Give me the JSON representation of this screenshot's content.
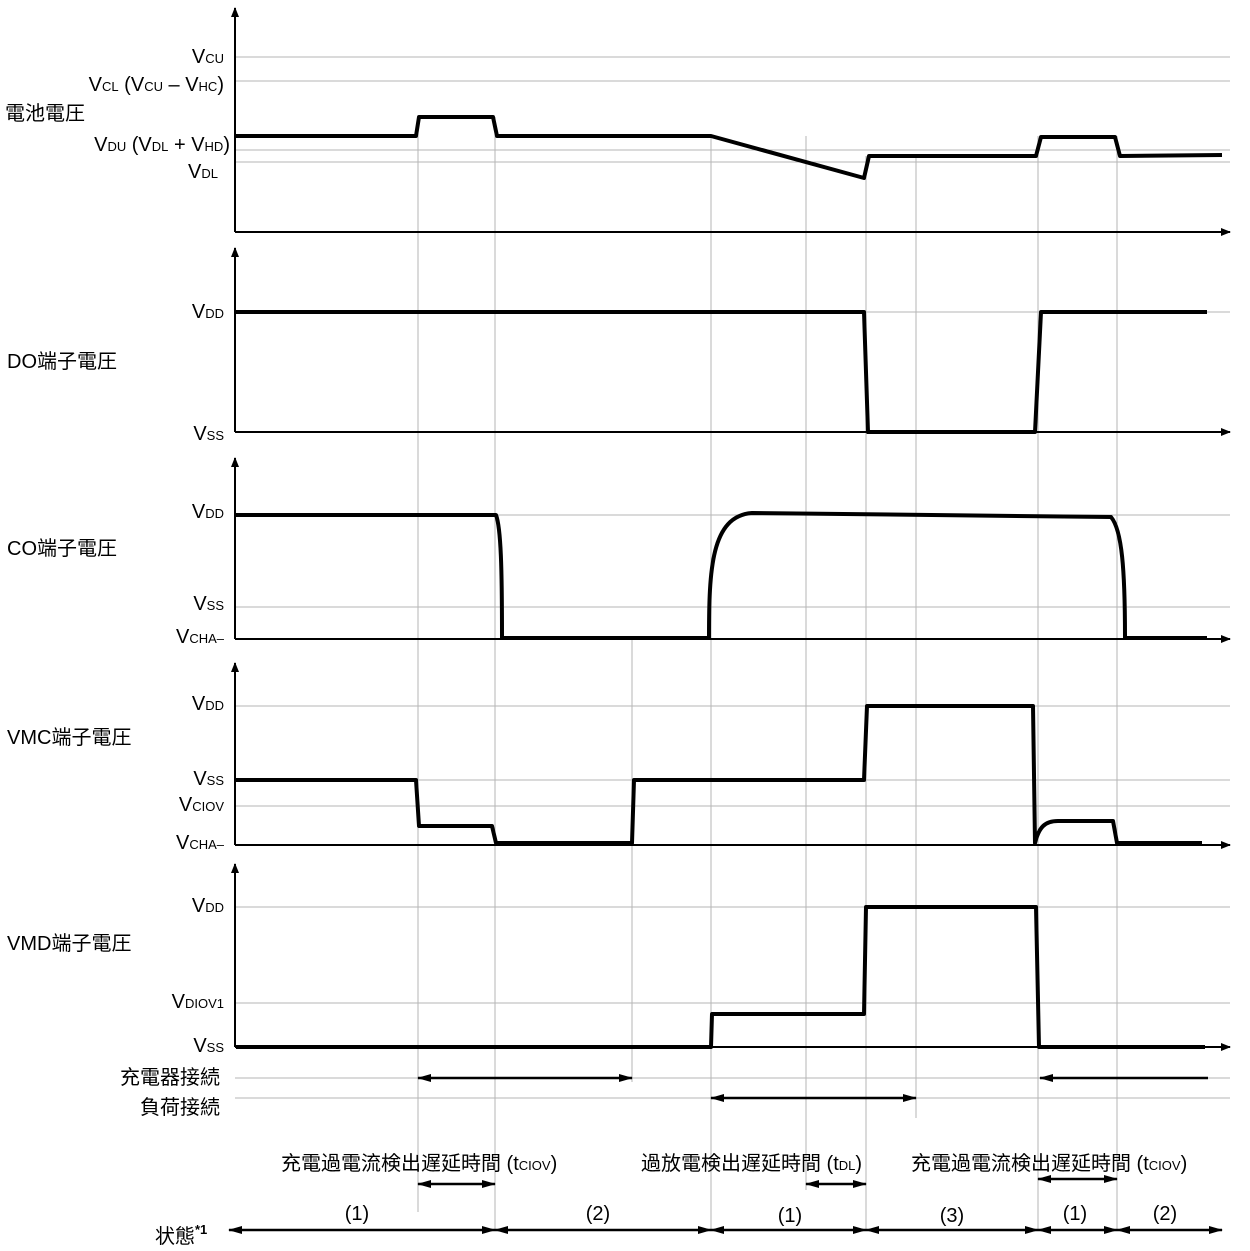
{
  "panels": [
    {
      "id": "battery",
      "title": "電池電圧",
      "levels": [
        {
          "base": "V",
          "sub": "CU",
          "rest": ""
        },
        {
          "base": "V",
          "sub": "CL",
          "rest": " (V",
          "sub2": "CU",
          "rest2": " – V",
          "sub3": "HC",
          "rest3": ")"
        },
        {
          "base": "V",
          "sub": "DU",
          "rest": " (V",
          "sub2": "DL",
          "rest2": " + V",
          "sub3": "HD",
          "rest3": ")"
        },
        {
          "base": "V",
          "sub": "DL",
          "rest": ""
        }
      ]
    },
    {
      "id": "do",
      "title": "DO端子電圧",
      "levels": [
        {
          "base": "V",
          "sub": "DD"
        },
        {
          "base": "V",
          "sub": "SS"
        }
      ]
    },
    {
      "id": "co",
      "title": "CO端子電圧",
      "levels": [
        {
          "base": "V",
          "sub": "DD"
        },
        {
          "base": "V",
          "sub": "SS"
        },
        {
          "base": "V",
          "sub": "CHA–"
        }
      ]
    },
    {
      "id": "vmc",
      "title": "VMC端子電圧",
      "levels": [
        {
          "base": "V",
          "sub": "DD"
        },
        {
          "base": "V",
          "sub": "SS"
        },
        {
          "base": "V",
          "sub": "CIOV"
        },
        {
          "base": "V",
          "sub": "CHA–"
        }
      ]
    },
    {
      "id": "vmd",
      "title": "VMD端子電圧",
      "levels": [
        {
          "base": "V",
          "sub": "DD"
        },
        {
          "base": "V",
          "sub": "DIOV1"
        },
        {
          "base": "V",
          "sub": "SS"
        }
      ]
    }
  ],
  "connections": {
    "charger": "充電器接続",
    "load": "負荷接続"
  },
  "delays": {
    "charge_overcurrent": {
      "text": "充電過電流検出遅延時間 (t",
      "sub": "CIOV",
      "end": ")"
    },
    "overdischarge": {
      "text": "過放電検出遅延時間 (t",
      "sub": "DL",
      "end": ")"
    }
  },
  "state": {
    "label": "状態",
    "footnote": "*1",
    "segments": [
      "(1)",
      "(2)",
      "(1)",
      "(3)",
      "(1)",
      "(2)"
    ]
  }
}
